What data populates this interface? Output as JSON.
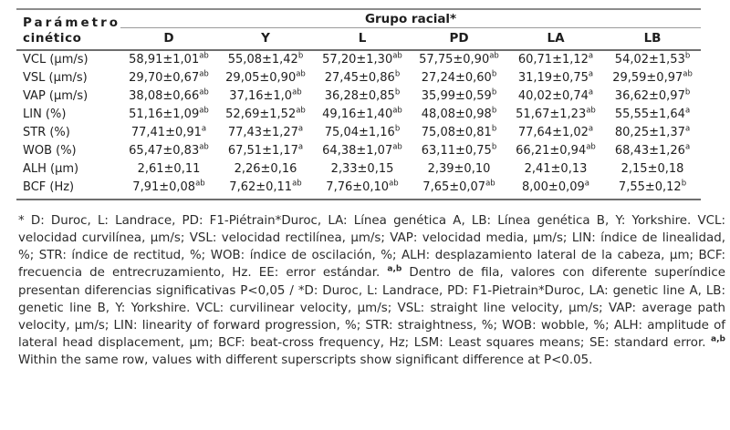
{
  "table": {
    "param_header_line1": "Parámetro",
    "param_header_line2": "cinético",
    "group_header": "Grupo racial*",
    "columns": [
      "D",
      "Y",
      "L",
      "PD",
      "LA",
      "LB"
    ],
    "rows": [
      {
        "param": "VCL (μm/s)",
        "cells": [
          [
            "58,91±1,01",
            "ab"
          ],
          [
            "55,08±1,42",
            "b"
          ],
          [
            "57,20±1,30",
            "ab"
          ],
          [
            "57,75±0,90",
            "ab"
          ],
          [
            "60,71±1,12",
            "a"
          ],
          [
            "54,02±1,53",
            "b"
          ]
        ]
      },
      {
        "param": "VSL (μm/s)",
        "cells": [
          [
            "29,70±0,67",
            "ab"
          ],
          [
            "29,05±0,90",
            "ab"
          ],
          [
            "27,45±0,86",
            "b"
          ],
          [
            "27,24±0,60",
            "b"
          ],
          [
            "31,19±0,75",
            "a"
          ],
          [
            "29,59±0,97",
            "ab"
          ]
        ]
      },
      {
        "param": "VAP (μm/s)",
        "cells": [
          [
            "38,08±0,66",
            "ab"
          ],
          [
            "37,16±1,0",
            "ab"
          ],
          [
            "36,28±0,85",
            "b"
          ],
          [
            "35,99±0,59",
            "b"
          ],
          [
            "40,02±0,74",
            "a"
          ],
          [
            "36,62±0,97",
            "b"
          ]
        ]
      },
      {
        "param": "LIN (%)",
        "cells": [
          [
            "51,16±1,09",
            "ab"
          ],
          [
            "52,69±1,52",
            "ab"
          ],
          [
            "49,16±1,40",
            "ab"
          ],
          [
            "48,08±0,98",
            "b"
          ],
          [
            "51,67±1,23",
            "ab"
          ],
          [
            "55,55±1,64",
            "a"
          ]
        ]
      },
      {
        "param": "STR (%)",
        "cells": [
          [
            "77,41±0,91",
            "a"
          ],
          [
            "77,43±1,27",
            "a"
          ],
          [
            "75,04±1,16",
            "b"
          ],
          [
            "75,08±0,81",
            "b"
          ],
          [
            "77,64±1,02",
            "a"
          ],
          [
            "80,25±1,37",
            "a"
          ]
        ]
      },
      {
        "param": "WOB (%)",
        "cells": [
          [
            "65,47±0,83",
            "ab"
          ],
          [
            "67,51±1,17",
            "a"
          ],
          [
            "64,38±1,07",
            "ab"
          ],
          [
            "63,11±0,75",
            "b"
          ],
          [
            "66,21±0,94",
            "ab"
          ],
          [
            "68,43±1,26",
            "a"
          ]
        ]
      },
      {
        "param": "ALH (μm)",
        "cells": [
          [
            "2,61±0,11",
            ""
          ],
          [
            "2,26±0,16",
            ""
          ],
          [
            "2,33±0,15",
            ""
          ],
          [
            "2,39±0,10",
            ""
          ],
          [
            "2,41±0,13",
            ""
          ],
          [
            "2,15±0,18",
            ""
          ]
        ]
      },
      {
        "param": "BCF (Hz)",
        "cells": [
          [
            "7,91±0,08",
            "ab"
          ],
          [
            "7,62±0,11",
            "ab"
          ],
          [
            "7,76±0,10",
            "ab"
          ],
          [
            "7,65±0,07",
            "ab"
          ],
          [
            "8,00±0,09",
            "a"
          ],
          [
            "7,55±0,12",
            "b"
          ]
        ]
      }
    ]
  },
  "footnote": {
    "part1": "* D: Duroc, L: Landrace, PD: F1-Piétrain*Duroc, LA: Línea genética A, LB: Línea genética B, Y: Yorkshire. VCL: velocidad curvilínea, μm/s; VSL: velocidad rectilínea, μm/s; VAP: velocidad media, μm/s; LIN: índice de linealidad, %; STR: índice de rectitud, %; WOB: índice de oscilación, %; ALH: desplazamiento lateral de la cabeza, μm; BCF: frecuencia de entrecruzamiento, Hz. EE: error estándar. ",
    "sup1": "a,b",
    "part2": " Dentro de fila, valores con diferente superíndice presentan diferencias significativas P<0,05 / *D: Duroc, L: Landrace, PD: F1-Pietrain*Duroc, LA: genetic line A, LB: genetic line B, Y: Yorkshire. VCL: curvilinear velocity, μm/s; VSL: straight line velocity, μm/s; VAP: average path velocity, μm/s; LIN: linearity of forward progression, %; STR: straightness, %; WOB: wobble, %; ALH: amplitude of lateral head displacement, μm; BCF: beat-cross frequency, Hz; LSM: Least squares means; SE: standard error. ",
    "sup2": "a,b",
    "part3": " Within the same row, values with different superscripts show significant difference at P<0.05."
  }
}
